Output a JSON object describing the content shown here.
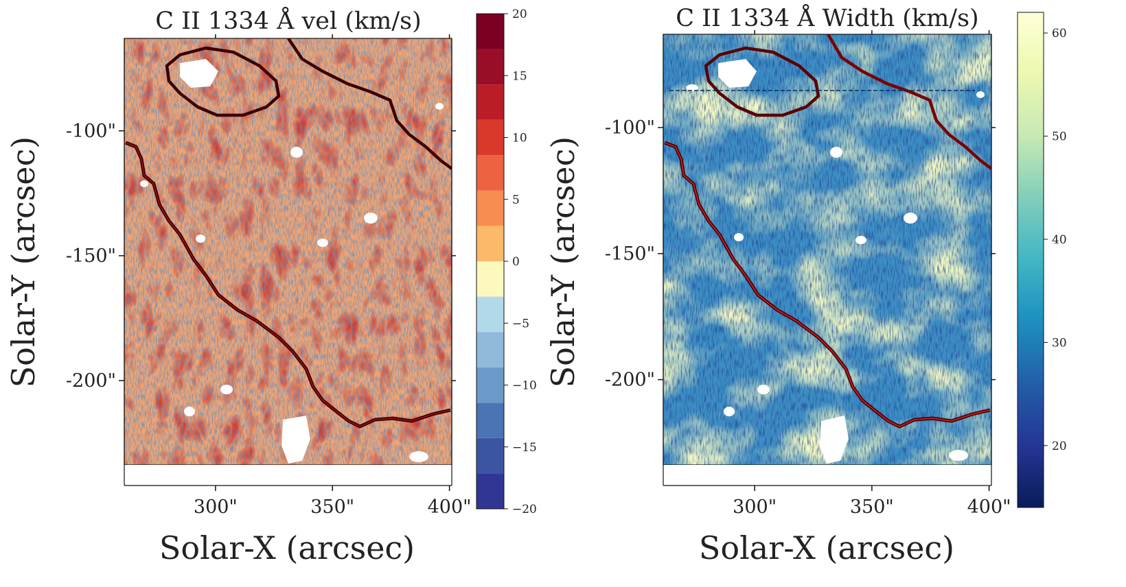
{
  "chart_data": [
    {
      "type": "heatmap",
      "title": "C II 1334 Å vel (km/s)",
      "xlabel": "Solar-X (arcsec)",
      "ylabel": "Solar-Y (arcsec)",
      "xlim": [
        261,
        401
      ],
      "ylim": [
        -242,
        -63
      ],
      "x_ticks": [
        {
          "value": 300,
          "label": "300\""
        },
        {
          "value": 350,
          "label": "350\""
        },
        {
          "value": 400,
          "label": "400\""
        }
      ],
      "y_ticks": [
        {
          "value": -100,
          "label": "-100\""
        },
        {
          "value": -150,
          "label": "-150\""
        },
        {
          "value": -200,
          "label": "-200\""
        }
      ],
      "colorbar": {
        "colormap": "RdYlBu_r (discrete)",
        "range": [
          -20,
          20
        ],
        "ticks": [
          {
            "value": -20,
            "label": "−20"
          },
          {
            "value": -15,
            "label": "−15"
          },
          {
            "value": -10,
            "label": "−10"
          },
          {
            "value": -5,
            "label": "−5"
          },
          {
            "value": 0,
            "label": "0"
          },
          {
            "value": 5,
            "label": "5"
          },
          {
            "value": 10,
            "label": "10"
          },
          {
            "value": 15,
            "label": "15"
          },
          {
            "value": 20,
            "label": "20"
          }
        ],
        "colors": [
          "#313695",
          "#3b55a3",
          "#4a74b4",
          "#6a9bc8",
          "#8fbadb",
          "#b2d9ea",
          "#fdf8bd",
          "#fdb96a",
          "#f88d52",
          "#ed6240",
          "#d8392b",
          "#bb1d26",
          "#990d27",
          "#7b0022"
        ]
      }
    },
    {
      "type": "heatmap",
      "title": "C II 1334 Å Width (km/s)",
      "xlabel": "Solar-X (arcsec)",
      "ylabel": "Solar-Y (arcsec)",
      "xlim": [
        261,
        401
      ],
      "ylim": [
        -242,
        -63
      ],
      "x_ticks": [
        {
          "value": 300,
          "label": "300\""
        },
        {
          "value": 350,
          "label": "350\""
        },
        {
          "value": 400,
          "label": "400\""
        }
      ],
      "y_ticks": [
        {
          "value": -100,
          "label": "-100\""
        },
        {
          "value": -150,
          "label": "-150\""
        },
        {
          "value": -200,
          "label": "-200\""
        }
      ],
      "colorbar": {
        "colormap": "YlGnBu_r",
        "range": [
          14,
          62
        ],
        "ticks": [
          {
            "value": 20,
            "label": "20"
          },
          {
            "value": 30,
            "label": "30"
          },
          {
            "value": 40,
            "label": "40"
          },
          {
            "value": 50,
            "label": "50"
          },
          {
            "value": 60,
            "label": "60"
          }
        ],
        "colors": [
          "#081d58",
          "#253494",
          "#225ea8",
          "#1d91c0",
          "#41b6c4",
          "#7fcdbb",
          "#c7e9b4",
          "#edf8b1",
          "#ffffd9"
        ]
      }
    }
  ]
}
